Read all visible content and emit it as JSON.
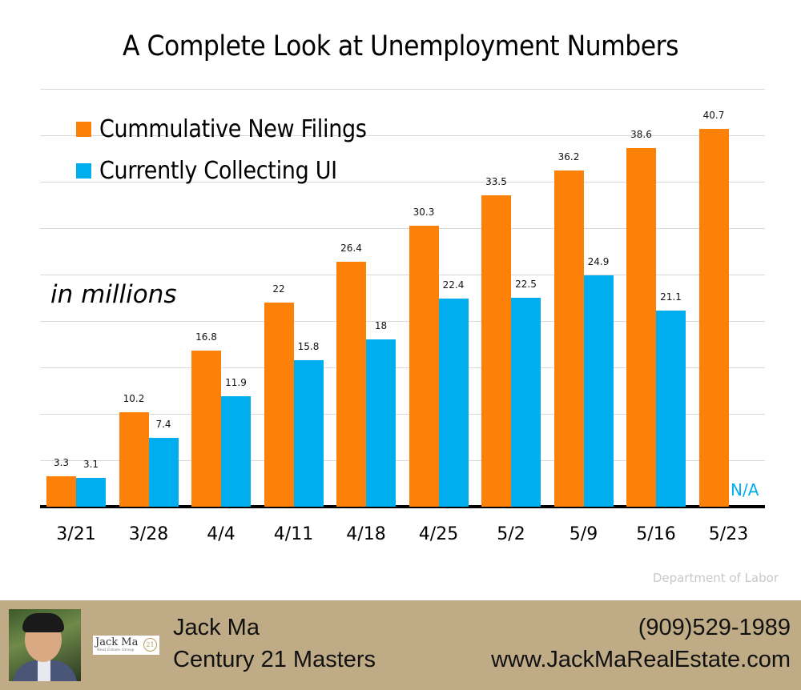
{
  "title": "A Complete Look at Unemployment Numbers",
  "units_label": "in millions",
  "source": "Department of Labor",
  "na_label": "N/A",
  "colors": {
    "orange": "#fd8008",
    "blue": "#00aeef",
    "footer": "#bfac86"
  },
  "legend": [
    {
      "label": "Cummulative New Filings",
      "color": "#fd8008"
    },
    {
      "label": "Currently Collecting UI",
      "color": "#00aeef"
    }
  ],
  "footer": {
    "agent_name": "Jack Ma",
    "company": "Century 21 Masters",
    "phone": "(909)529-1989",
    "website": "www.JackMaRealEstate.com",
    "logo_name": "Jack Ma",
    "logo_sub": "Real Estate Group",
    "logo_badge": "21"
  },
  "chart_data": {
    "type": "bar",
    "title": "A Complete Look at Unemployment Numbers",
    "xlabel": "",
    "ylabel": "in millions",
    "categories": [
      "3/21",
      "3/28",
      "4/4",
      "4/11",
      "4/18",
      "4/25",
      "5/2",
      "5/9",
      "5/16",
      "5/23"
    ],
    "series": [
      {
        "name": "Cummulative New Filings",
        "values": [
          3.3,
          10.2,
          16.8,
          22,
          26.4,
          30.3,
          33.5,
          36.2,
          38.6,
          40.7
        ]
      },
      {
        "name": "Currently Collecting UI",
        "values": [
          3.1,
          7.4,
          11.9,
          15.8,
          18,
          22.4,
          22.5,
          24.9,
          21.1,
          null
        ]
      }
    ],
    "value_labels": {
      "Cummulative New Filings": [
        "3.3",
        "10.2",
        "16.8",
        "22",
        "26.4",
        "30.3",
        "33.5",
        "36.2",
        "38.6",
        "40.7"
      ],
      "Currently Collecting UI": [
        "3.1",
        "7.4",
        "11.9",
        "15.8",
        "18",
        "22.4",
        "22.5",
        "24.9",
        "21.1",
        "N/A"
      ]
    },
    "ylim": [
      0,
      45
    ],
    "grid": true,
    "grid_step": 5,
    "y_axis_visible": false,
    "legend_position": "top-left, inside plot",
    "annotations": [
      "in millions",
      "N/A",
      "Department of Labor"
    ]
  }
}
